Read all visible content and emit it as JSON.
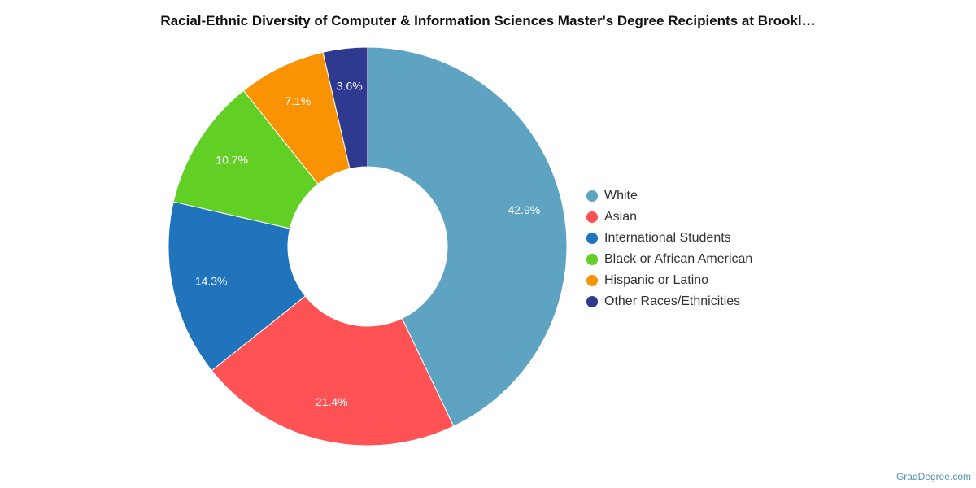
{
  "chart_data": {
    "type": "pie",
    "title": "Racial-Ethnic Diversity of Computer & Information Sciences Master's Degree Recipients at Brookl…",
    "categories": [
      "White",
      "Asian",
      "International Students",
      "Black or African American",
      "Hispanic or Latino",
      "Other Races/Ethnicities"
    ],
    "values": [
      42.9,
      21.4,
      14.3,
      10.7,
      7.1,
      3.6
    ],
    "labels": [
      "42.9%",
      "21.4%",
      "14.3%",
      "10.7%",
      "7.1%",
      "3.6%"
    ],
    "colors": [
      "#5ea3c1",
      "#fe5254",
      "#1f74bb",
      "#61cf24",
      "#fa9303",
      "#2d3a8f"
    ],
    "legend_placement": "right"
  },
  "credit": "GradDegree.com"
}
